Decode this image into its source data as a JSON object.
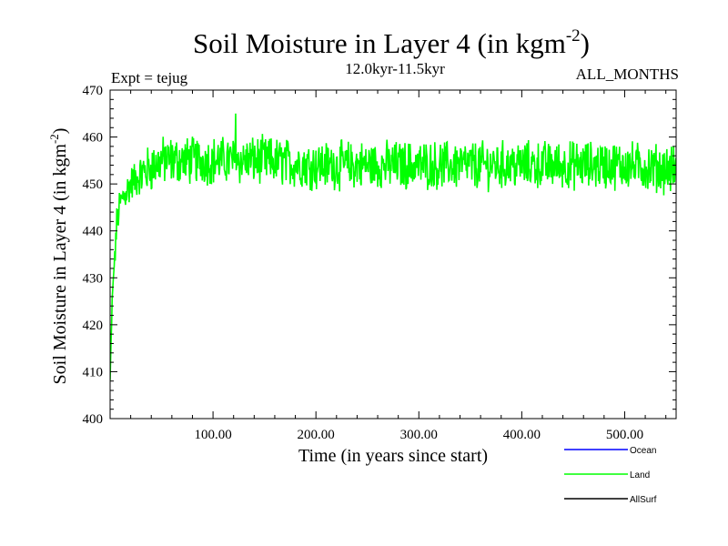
{
  "chart_data": {
    "type": "line",
    "title_main": "Soil Moisture in Layer 4 (in kgm",
    "title_exp": "-2",
    "title_close": ")",
    "expt_label": "Expt = tejug",
    "period_label": "12.0kyr-11.5kyr",
    "months_label": "ALL_MONTHS",
    "ylabel_main": "Soil Moisture in Layer 4 (in kgm",
    "ylabel_exp": "-2",
    "ylabel_close": ")",
    "xlabel": "Time (in years since start)",
    "xlim": [
      0,
      550
    ],
    "ylim": [
      400,
      470
    ],
    "x_ticks": [
      100,
      200,
      300,
      400,
      500
    ],
    "x_tick_labels": [
      "100.00",
      "200.00",
      "300.00",
      "400.00",
      "500.00"
    ],
    "y_ticks": [
      400,
      410,
      420,
      430,
      440,
      450,
      460,
      470
    ],
    "y_tick_labels": [
      "400",
      "410",
      "420",
      "430",
      "440",
      "450",
      "460",
      "470"
    ],
    "legend": [
      {
        "name": "Ocean",
        "color": "#0000ff"
      },
      {
        "name": "Land",
        "color": "#00ff00"
      },
      {
        "name": "AllSurf",
        "color": "#000000"
      }
    ],
    "series": [
      {
        "name": "Land",
        "color": "#00ff00",
        "description_points": [
          [
            0,
            408
          ],
          [
            2,
            425
          ],
          [
            4,
            433
          ],
          [
            6,
            440
          ],
          [
            8,
            444
          ],
          [
            12,
            447
          ],
          [
            20,
            450
          ],
          [
            30,
            452
          ],
          [
            50,
            455
          ],
          [
            100,
            455
          ],
          [
            150,
            455
          ],
          [
            200,
            454
          ],
          [
            250,
            454
          ],
          [
            300,
            454
          ],
          [
            350,
            454
          ],
          [
            400,
            454
          ],
          [
            450,
            454
          ],
          [
            500,
            454
          ],
          [
            550,
            453
          ]
        ],
        "noise_amplitude": 4.5,
        "peak_max": [
          122,
          465
        ]
      }
    ]
  }
}
